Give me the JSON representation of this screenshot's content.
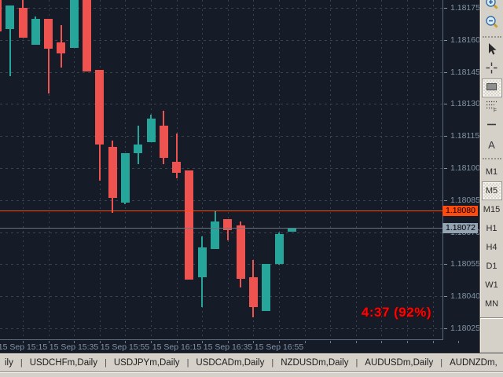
{
  "chart": {
    "background": "#151b27",
    "grid_color": "#3a4150",
    "frame_color": "#5a6b7d",
    "axis_text_color": "#8294a6",
    "up_color": "#26a69a",
    "down_color": "#ef5350"
  },
  "chart_data": {
    "type": "candlestick",
    "timeframe": "M5",
    "x_labels": [
      "15 Sep 15:15",
      "15 Sep 15:35",
      "15 Sep 15:55",
      "15 Sep 16:15",
      "15 Sep 16:35",
      "15 Sep 16:55"
    ],
    "y_ticks": [
      1.18175,
      1.1816,
      1.18145,
      1.1813,
      1.18115,
      1.181,
      1.18085,
      1.1807,
      1.18055,
      1.1804,
      1.18025
    ],
    "y_range": [
      1.18025,
      1.18175
    ],
    "grid": true,
    "candles": [
      {
        "time": "15:05",
        "o": 1.1818,
        "h": 1.1818,
        "l": 1.18164,
        "c": 1.18164
      },
      {
        "time": "15:10",
        "o": 1.18165,
        "h": 1.18176,
        "l": 1.18143,
        "c": 1.18176
      },
      {
        "time": "15:15",
        "o": 1.18175,
        "h": 1.18179,
        "l": 1.18161,
        "c": 1.18161
      },
      {
        "time": "15:20",
        "o": 1.18158,
        "h": 1.18171,
        "l": 1.18158,
        "c": 1.1817
      },
      {
        "time": "15:25",
        "o": 1.1817,
        "h": 1.1817,
        "l": 1.18135,
        "c": 1.18156
      },
      {
        "time": "15:30",
        "o": 1.18159,
        "h": 1.18167,
        "l": 1.18147,
        "c": 1.18154
      },
      {
        "time": "15:35",
        "o": 1.18156,
        "h": 1.1818,
        "l": 1.18156,
        "c": 1.1818
      },
      {
        "time": "15:40",
        "o": 1.1818,
        "h": 1.1818,
        "l": 1.18145,
        "c": 1.18145
      },
      {
        "time": "15:45",
        "o": 1.18146,
        "h": 1.18146,
        "l": 1.18094,
        "c": 1.18111
      },
      {
        "time": "15:50",
        "o": 1.1811,
        "h": 1.18113,
        "l": 1.18079,
        "c": 1.18086
      },
      {
        "time": "15:55",
        "o": 1.18084,
        "h": 1.18107,
        "l": 1.18083,
        "c": 1.18107
      },
      {
        "time": "16:00",
        "o": 1.18107,
        "h": 1.1812,
        "l": 1.18102,
        "c": 1.18111
      },
      {
        "time": "16:05",
        "o": 1.18112,
        "h": 1.18125,
        "l": 1.18112,
        "c": 1.18123
      },
      {
        "time": "16:10",
        "o": 1.1812,
        "h": 1.18127,
        "l": 1.18102,
        "c": 1.18105
      },
      {
        "time": "16:15",
        "o": 1.18103,
        "h": 1.18116,
        "l": 1.18095,
        "c": 1.18098
      },
      {
        "time": "16:20",
        "o": 1.18099,
        "h": 1.18099,
        "l": 1.18048,
        "c": 1.18048
      },
      {
        "time": "16:25",
        "o": 1.18049,
        "h": 1.18068,
        "l": 1.18035,
        "c": 1.18063
      },
      {
        "time": "16:30",
        "o": 1.18062,
        "h": 1.1808,
        "l": 1.18062,
        "c": 1.18075
      },
      {
        "time": "16:35",
        "o": 1.18076,
        "h": 1.18076,
        "l": 1.18066,
        "c": 1.18071
      },
      {
        "time": "16:40",
        "o": 1.18073,
        "h": 1.18075,
        "l": 1.18044,
        "c": 1.18048
      },
      {
        "time": "16:45",
        "o": 1.18049,
        "h": 1.18057,
        "l": 1.1803,
        "c": 1.18035
      },
      {
        "time": "16:50",
        "o": 1.18033,
        "h": 1.18055,
        "l": 1.18033,
        "c": 1.18055
      },
      {
        "time": "16:55",
        "o": 1.18055,
        "h": 1.1807,
        "l": 1.18055,
        "c": 1.18069
      },
      {
        "time": "17:00",
        "o": 1.1807,
        "h": 1.18072,
        "l": 1.1807,
        "c": 1.18072
      }
    ],
    "hlines": [
      {
        "name": "alert-line",
        "price": 1.1808,
        "label": "1.18080",
        "line_color": "#ff4a10",
        "tag_color": "#ff4a10"
      },
      {
        "name": "bid-line",
        "price": 1.18072,
        "label": "1.18072",
        "line_color": "#6b7682",
        "tag_color": "#94a4b2"
      }
    ],
    "countdown": {
      "text": "4:37 (92%)",
      "color": "#ff0202"
    }
  },
  "toolbar": {
    "groups": [
      {
        "name": "zoom-tools",
        "items": [
          {
            "icon": "zoom-in-icon",
            "selected": false
          },
          {
            "icon": "zoom-out-icon",
            "selected": false
          }
        ]
      },
      {
        "name": "line-studies",
        "items": [
          {
            "icon": "cursor-icon",
            "selected": false
          },
          {
            "icon": "crosshair-icon",
            "selected": false
          },
          {
            "icon": "rectangle-icon",
            "selected": true
          },
          {
            "icon": "fibonacci-icon",
            "selected": false
          },
          {
            "icon": "horizontal-line-icon",
            "selected": false
          },
          {
            "icon": "text-label-icon",
            "selected": false,
            "glyph": "A"
          }
        ]
      },
      {
        "name": "periods",
        "items": [
          {
            "label": "M1",
            "selected": false
          },
          {
            "label": "M5",
            "selected": true
          },
          {
            "label": "M15",
            "selected": false
          },
          {
            "label": "H1",
            "selected": false
          },
          {
            "label": "H4",
            "selected": false
          },
          {
            "label": "D1",
            "selected": false
          },
          {
            "label": "W1",
            "selected": false
          },
          {
            "label": "MN",
            "selected": false
          }
        ]
      }
    ]
  },
  "tabs": {
    "separator": "|",
    "items": [
      {
        "label": "ily",
        "clipped": true
      },
      {
        "label": "USDCHFm,Daily"
      },
      {
        "label": "USDJPYm,Daily"
      },
      {
        "label": "USDCADm,Daily"
      },
      {
        "label": "NZDUSDm,Daily"
      },
      {
        "label": "AUDUSDm,Daily"
      },
      {
        "label": "AUDNZDm,"
      }
    ],
    "scroll_left_label": "◄",
    "scroll_right_label": "►"
  }
}
